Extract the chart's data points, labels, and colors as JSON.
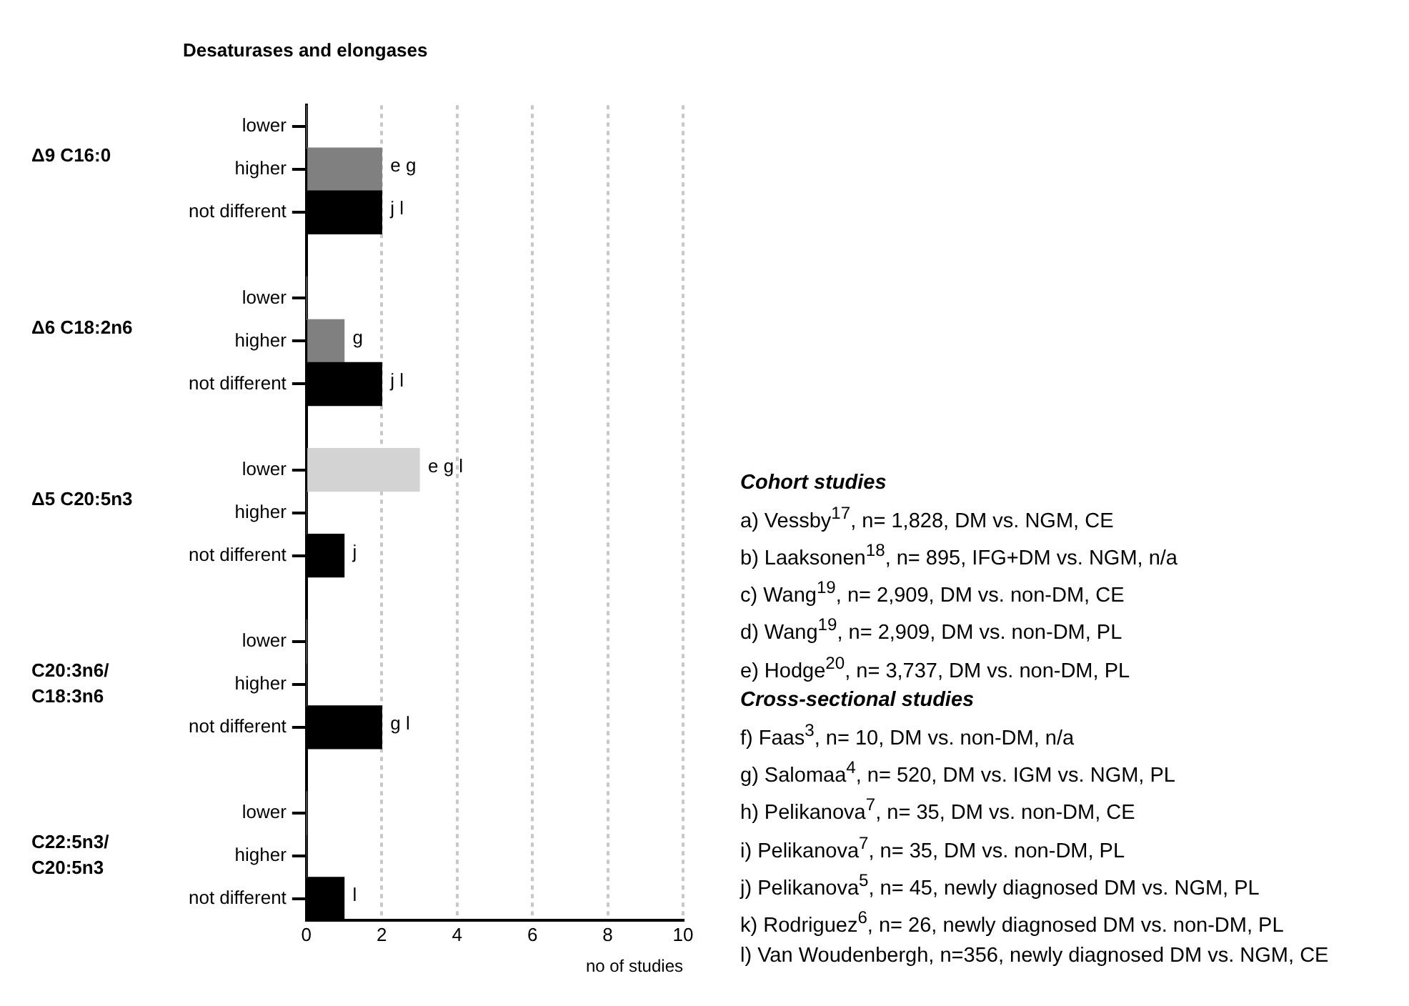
{
  "chart_data": {
    "type": "bar",
    "orientation": "horizontal",
    "title": "Desaturases and elongases",
    "xlabel": "no of studies",
    "categories": [
      "lower",
      "higher",
      "not different",
      null,
      "lower",
      "higher",
      "not different",
      null,
      "lower",
      "higher",
      "not different",
      null,
      "lower",
      "higher",
      "not different",
      null,
      "lower",
      "higher",
      "not different"
    ],
    "values": [
      0,
      2,
      2,
      null,
      0,
      1,
      2,
      null,
      3,
      0,
      1,
      null,
      0,
      0,
      2,
      null,
      0,
      0,
      1
    ],
    "colors": [
      "#d3d3d3",
      "#808080",
      "#000000",
      null,
      "#d3d3d3",
      "#808080",
      "#000000",
      null,
      "#d3d3d3",
      "#808080",
      "#000000",
      null,
      "#d3d3d3",
      "#808080",
      "#000000",
      null,
      "#d3d3d3",
      "#808080",
      "#000000"
    ],
    "value_labels": [
      null,
      "e g",
      "j l",
      null,
      null,
      "g",
      "j l",
      null,
      "e g l",
      null,
      "j",
      null,
      null,
      null,
      "g l",
      null,
      null,
      null,
      "l"
    ],
    "xlim": [
      0,
      10
    ],
    "xticks": [
      0,
      2,
      4,
      6,
      8,
      10
    ],
    "grid": "x",
    "legend": false,
    "annotations": [
      "Δ9 C16:0",
      "Δ6 C18:2n6",
      "Δ5 C20:5n3",
      "C20:3n6/\nC18:3n6",
      "C22:5n3/\nC20:5n3",
      "Cohort studies",
      "a) Vessby$^{17}$, n= 1,828, DM vs. NGM, CE",
      "b) Laaksonen$^{18}$, n= 895, IFG+DM vs. NGM, n/a",
      "c) Wang$^{19}$, n= 2,909, DM vs. non-DM, CE",
      "d) Wang$^{19}$, n= 2,909, DM vs. non-DM, PL",
      "e) Hodge$^{20}$, n= 3,737, DM vs. non-DM, PL",
      "Cross-sectional studies",
      "f) Faas$^{3}$, n= 10, DM vs. non-DM, n/a",
      "g) Salomaa$^{4}$, n= 520, DM vs. IGM vs. NGM, PL",
      "h) Pelikanova$^{7}$, n= 35, DM vs. non-DM, CE",
      "i) Pelikanova$^{7}$, n= 35, DM vs. non-DM, PL",
      "j) Pelikanova$^{5}$, n= 45, newly diagnosed DM vs. NGM, PL",
      "k) Rodriguez$^{6}$, n= 26, newly diagnosed DM vs. non-DM, PL",
      "l) Van Woudenbergh, n=356, newly diagnosed DM vs. NGM, CE"
    ]
  }
}
